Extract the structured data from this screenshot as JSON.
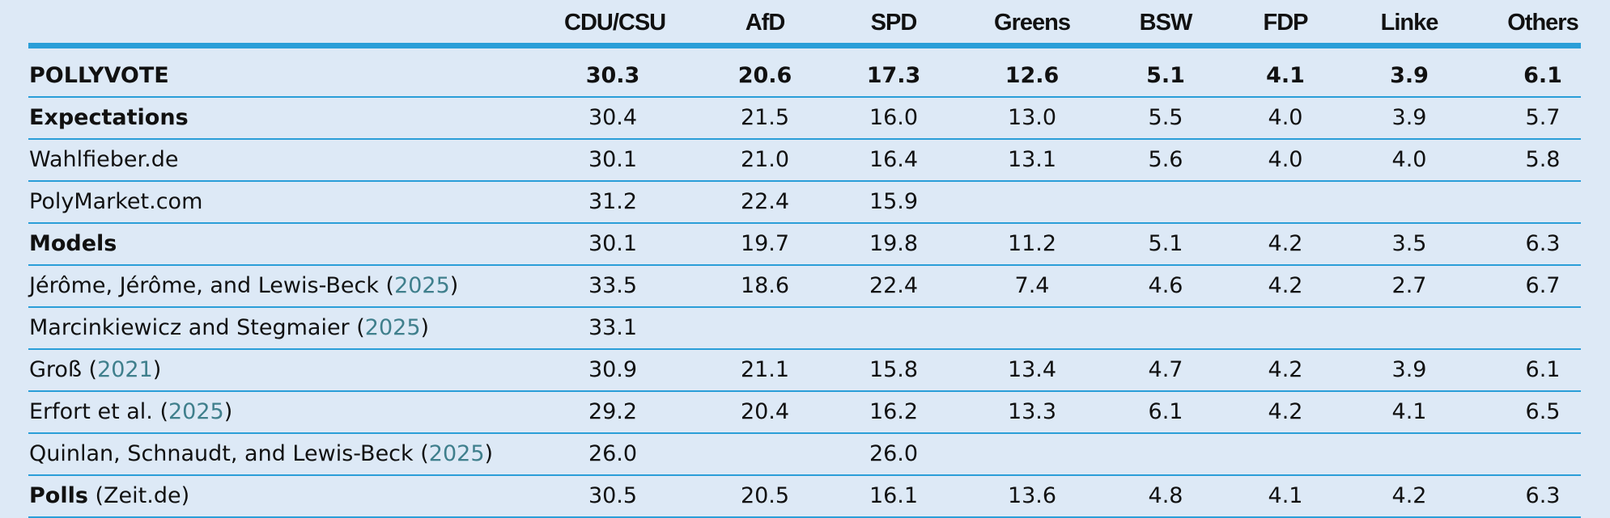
{
  "table": {
    "columns": [
      "CDU/CSU",
      "AfD",
      "SPD",
      "Greens",
      "BSW",
      "FDP",
      "Linke",
      "Others"
    ],
    "rows": [
      {
        "label": [
          {
            "text": "POLLYVOTE",
            "bold": true
          }
        ],
        "bold_values": true,
        "values": [
          "30.3",
          "20.6",
          "17.3",
          "12.6",
          "5.1",
          "4.1",
          "3.9",
          "6.1"
        ]
      },
      {
        "label": [
          {
            "text": "Expectations",
            "bold": true
          }
        ],
        "values": [
          "30.4",
          "21.5",
          "16.0",
          "13.0",
          "5.5",
          "4.0",
          "3.9",
          "5.7"
        ]
      },
      {
        "label": [
          {
            "text": "Wahlfieber.de"
          }
        ],
        "values": [
          "30.1",
          "21.0",
          "16.4",
          "13.1",
          "5.6",
          "4.0",
          "4.0",
          "5.8"
        ]
      },
      {
        "label": [
          {
            "text": "PolyMarket.com"
          }
        ],
        "values": [
          "31.2",
          "22.4",
          "15.9",
          null,
          null,
          null,
          null,
          null
        ]
      },
      {
        "label": [
          {
            "text": "Models",
            "bold": true
          }
        ],
        "values": [
          "30.1",
          "19.7",
          "19.8",
          "11.2",
          "5.1",
          "4.2",
          "3.5",
          "6.3"
        ]
      },
      {
        "label": [
          {
            "text": "Jérôme, Jérôme, and Lewis-Beck ("
          },
          {
            "text": "2025",
            "link": true
          },
          {
            "text": ")"
          }
        ],
        "values": [
          "33.5",
          "18.6",
          "22.4",
          "7.4",
          "4.6",
          "4.2",
          "2.7",
          "6.7"
        ]
      },
      {
        "label": [
          {
            "text": "Marcinkiewicz and Stegmaier ("
          },
          {
            "text": "2025",
            "link": true
          },
          {
            "text": ")"
          }
        ],
        "values": [
          "33.1",
          null,
          null,
          null,
          null,
          null,
          null,
          null
        ]
      },
      {
        "label": [
          {
            "text": "Groß ("
          },
          {
            "text": "2021",
            "link": true
          },
          {
            "text": ")"
          }
        ],
        "values": [
          "30.9",
          "21.1",
          "15.8",
          "13.4",
          "4.7",
          "4.2",
          "3.9",
          "6.1"
        ]
      },
      {
        "label": [
          {
            "text": "Erfort et al. ("
          },
          {
            "text": "2025",
            "link": true
          },
          {
            "text": ")"
          }
        ],
        "values": [
          "29.2",
          "20.4",
          "16.2",
          "13.3",
          "6.1",
          "4.2",
          "4.1",
          "6.5"
        ]
      },
      {
        "label": [
          {
            "text": "Quinlan, Schnaudt, and Lewis-Beck ("
          },
          {
            "text": "2025",
            "link": true
          },
          {
            "text": ")"
          }
        ],
        "values": [
          "26.0",
          null,
          "26.0",
          null,
          null,
          null,
          null,
          null
        ]
      },
      {
        "label": [
          {
            "text": "Polls",
            "bold": true
          },
          {
            "text": " (Zeit.de)"
          }
        ],
        "values": [
          "30.5",
          "20.5",
          "16.1",
          "13.6",
          "4.8",
          "4.1",
          "4.2",
          "6.3"
        ]
      }
    ]
  }
}
